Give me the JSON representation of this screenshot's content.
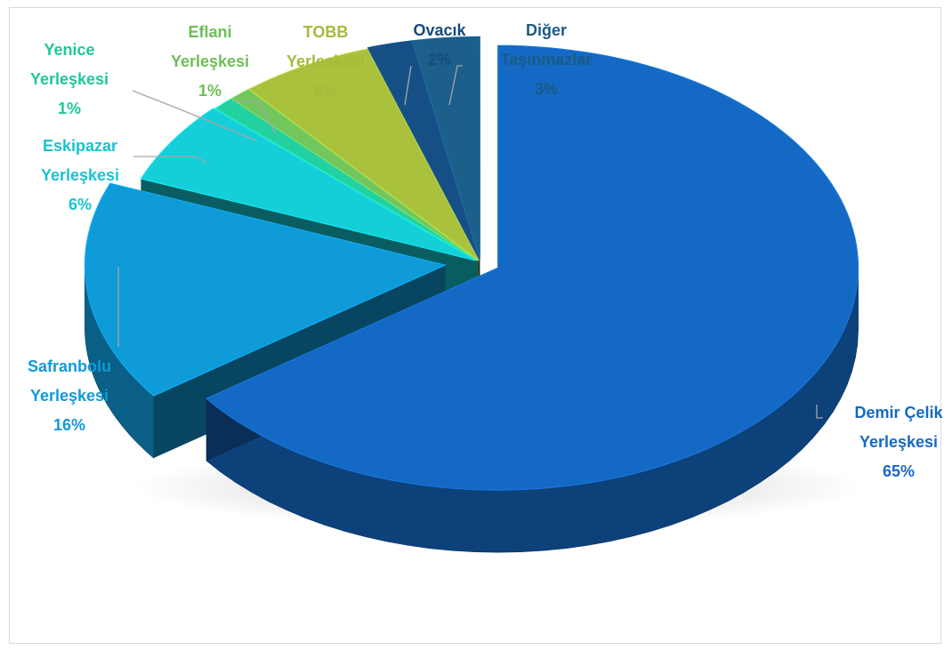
{
  "chart_data": {
    "type": "pie",
    "title": "",
    "style": "3d-exploded",
    "slices": [
      {
        "name_lines": [
          "Demir Çelik",
          "Yerleşkesi"
        ],
        "pct_label": "65%",
        "value": 65,
        "color": "#1469c4",
        "label_color": "#1469c4"
      },
      {
        "name_lines": [
          "Safranbolu",
          "Yerleşkesi"
        ],
        "pct_label": "16%",
        "value": 16,
        "color": "#0f9ad8",
        "label_color": "#0f9ad8"
      },
      {
        "name_lines": [
          "Eskipazar",
          "Yerleşkesi"
        ],
        "pct_label": "6%",
        "value": 6,
        "color": "#14cfd8",
        "label_color": "#19c3cf"
      },
      {
        "name_lines": [
          "Yenice",
          "Yerleşkesi"
        ],
        "pct_label": "1%",
        "value": 1,
        "color": "#23d1a0",
        "label_color": "#1ec89a"
      },
      {
        "name_lines": [
          "Eflani",
          "Yerleşkesi"
        ],
        "pct_label": "1%",
        "value": 1,
        "color": "#72c65c",
        "label_color": "#6cbf55"
      },
      {
        "name_lines": [
          "TOBB",
          "Yerleşkesi"
        ],
        "pct_label": "6%",
        "value": 6,
        "color": "#a9c13c",
        "label_color": "#a6bb3a"
      },
      {
        "name_lines": [
          "Ovacık"
        ],
        "pct_label": "2%",
        "value": 2,
        "color": "#164f86",
        "label_color": "#164b7e"
      },
      {
        "name_lines": [
          "Diğer",
          "Taşınmazlar"
        ],
        "pct_label": "3%",
        "value": 3,
        "color": "#1b5f8a",
        "label_color": "#1b5a82"
      }
    ]
  }
}
